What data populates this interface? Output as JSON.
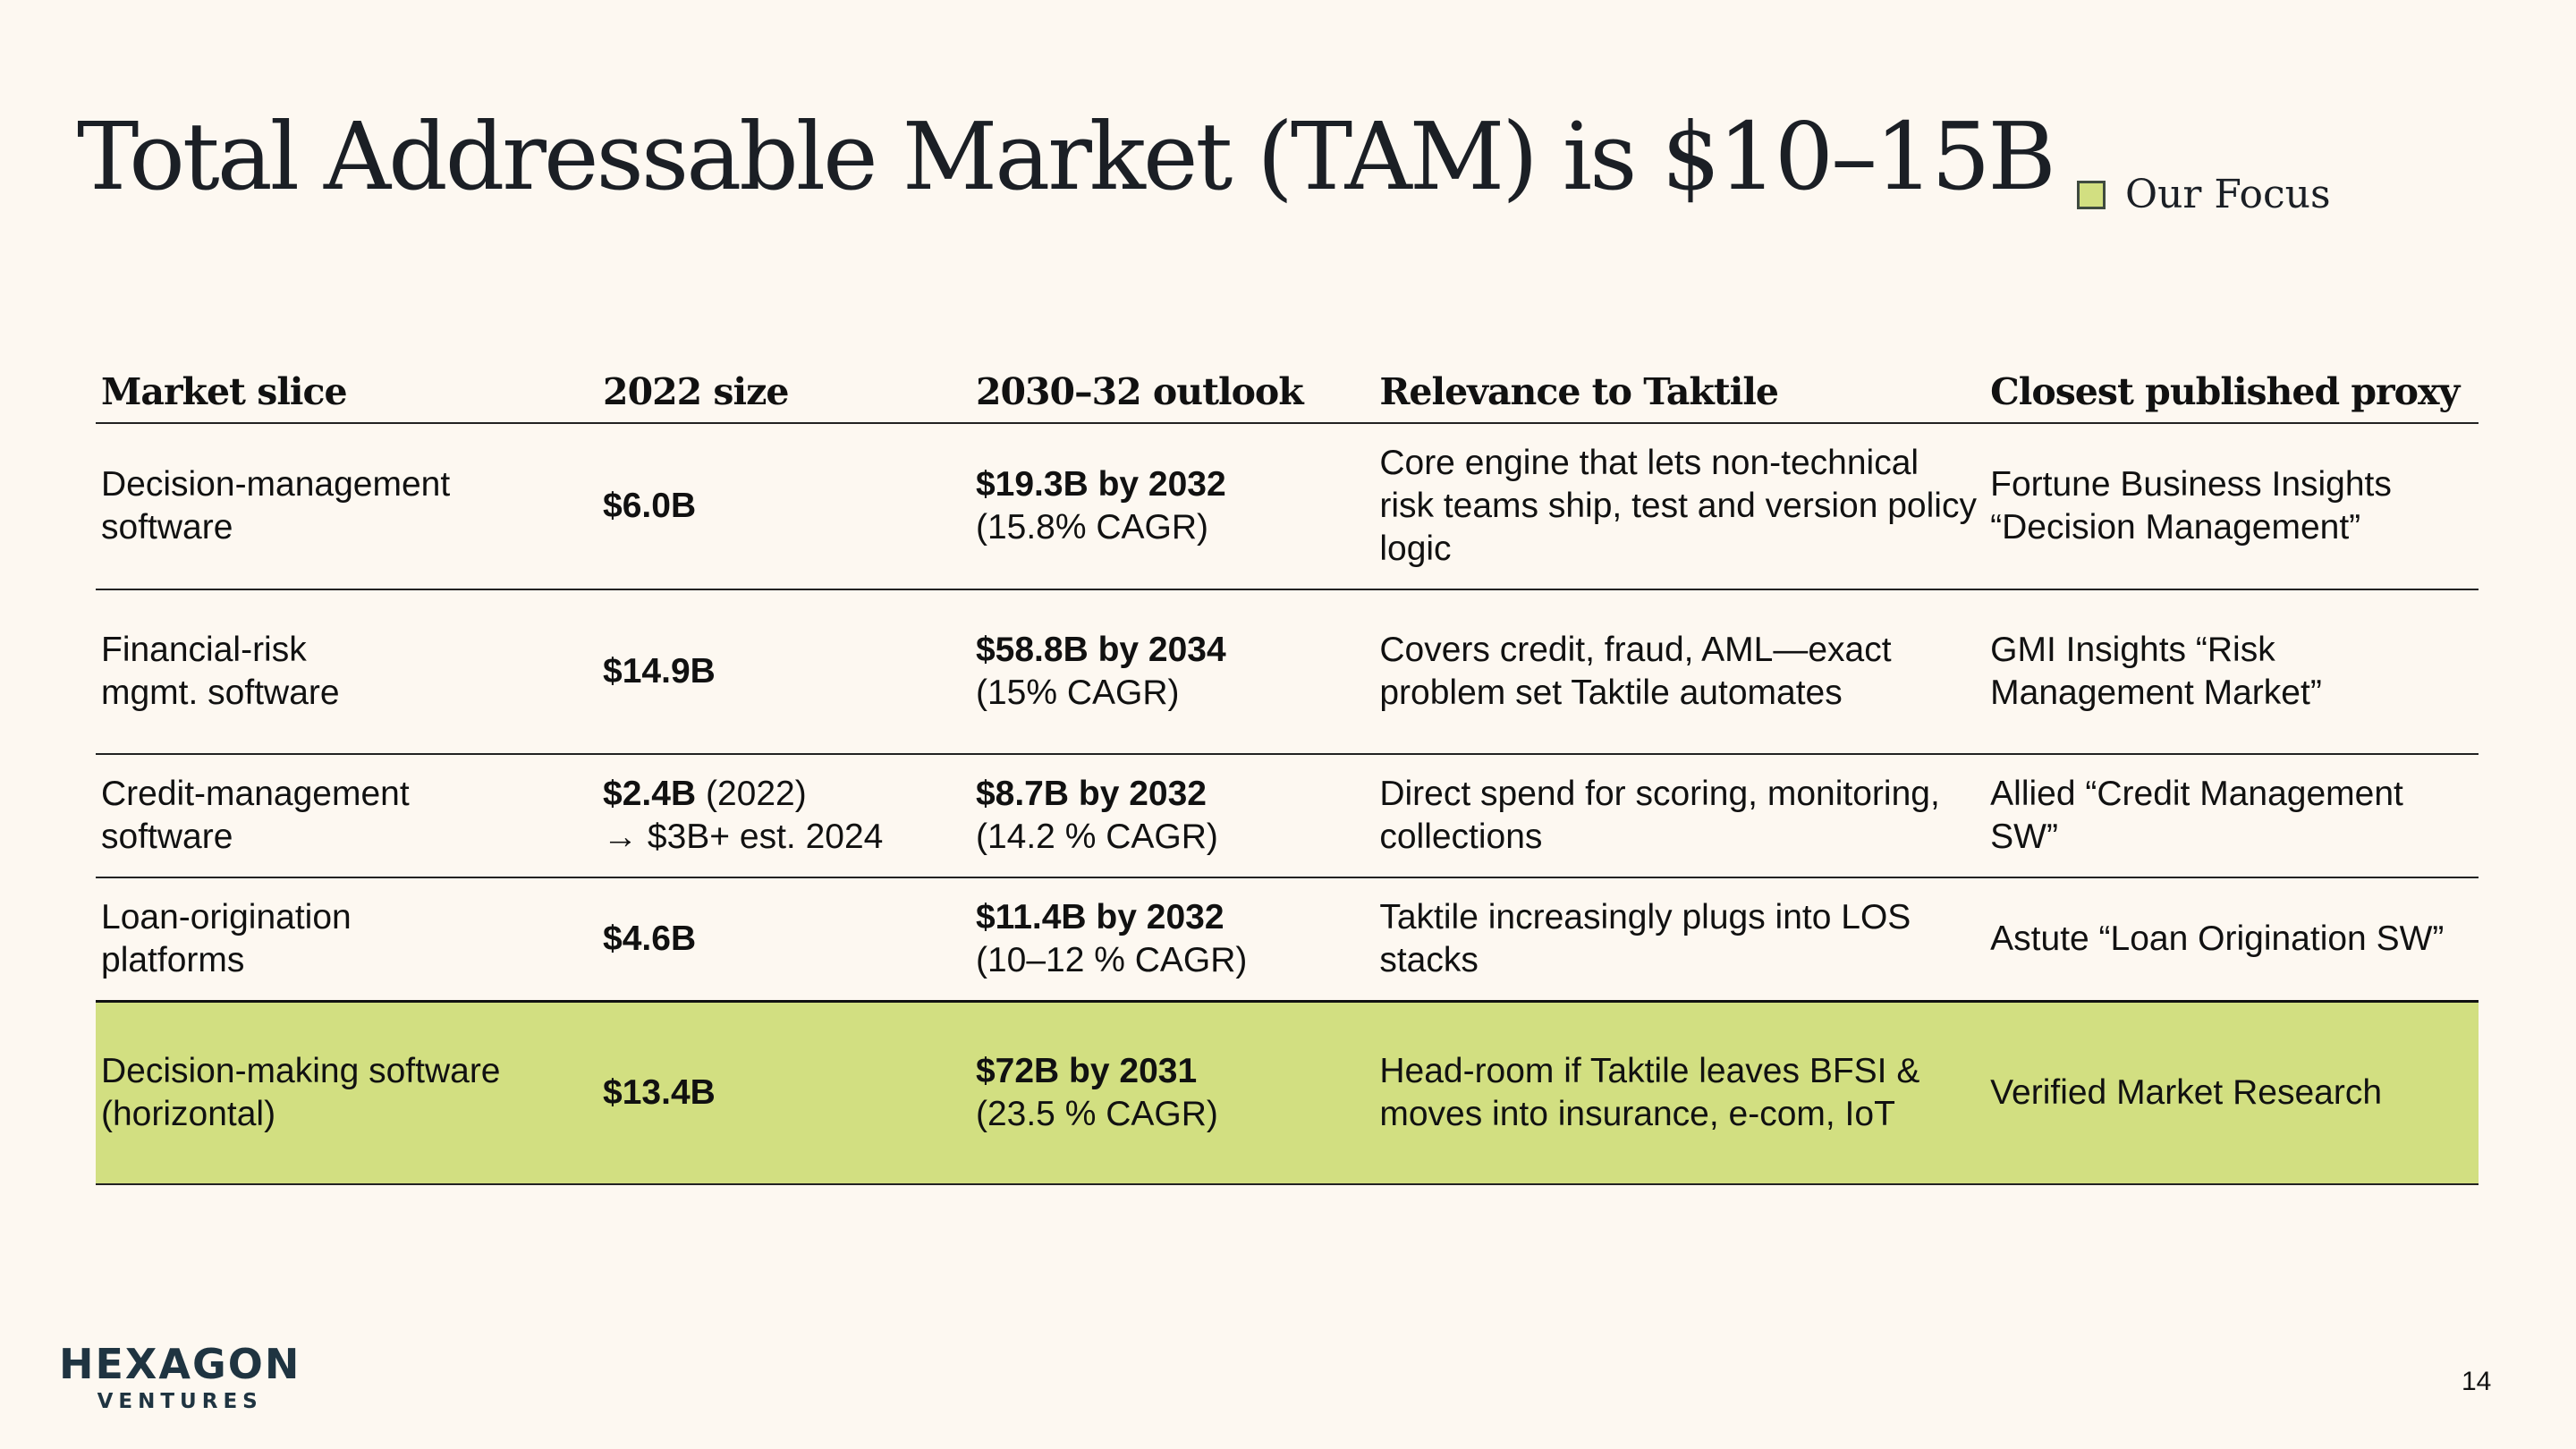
{
  "title": "Total Addressable Market (TAM) is $10–15B",
  "legend": {
    "label": "Our Focus",
    "color": "#d2df81"
  },
  "table": {
    "headers": [
      "Market slice",
      "2022 size",
      "2030–32 outlook",
      "Relevance to Taktile",
      "Closest published proxy"
    ],
    "rows": [
      {
        "slice_line1": "Decision-management",
        "slice_line2": "software",
        "size_bold": "$6.0B",
        "size_rest": "",
        "size_line2": "",
        "outlook_bold": "$19.3B by 2032",
        "outlook_cagr": "(15.8% CAGR)",
        "relevance": "Core engine that lets non-technical risk teams ship, test and version policy logic",
        "proxy": "Fortune Business Insights “Decision Management”",
        "focus": false
      },
      {
        "slice_line1": "Financial-risk",
        "slice_line2": "mgmt. software",
        "size_bold": "$14.9B",
        "size_rest": "",
        "size_line2": "",
        "outlook_bold": "$58.8B by 2034",
        "outlook_cagr": "(15% CAGR)",
        "relevance": "Covers credit, fraud, AML—exact problem set Taktile automates",
        "proxy": "GMI Insights “Risk Management Market”",
        "focus": false
      },
      {
        "slice_line1": "Credit-management",
        "slice_line2": "software",
        "size_bold": "$2.4B",
        "size_rest": " (2022)",
        "size_line2": "→ $3B+ est. 2024",
        "outlook_bold": "$8.7B by 2032",
        "outlook_cagr": "(14.2 % CAGR)",
        "relevance": "Direct spend for scoring, monitoring, collections",
        "proxy": "Allied “Credit Management SW”",
        "focus": false
      },
      {
        "slice_line1": "Loan-origination",
        "slice_line2": "platforms",
        "size_bold": "$4.6B",
        "size_rest": "",
        "size_line2": "",
        "outlook_bold": "$11.4B by 2032",
        "outlook_cagr": "(10–12 % CAGR)",
        "relevance": "Taktile increasingly plugs into LOS stacks",
        "proxy": "Astute “Loan Origination SW”",
        "focus": false
      },
      {
        "slice_line1": "Decision-making software",
        "slice_line2": "(horizontal)",
        "size_bold": "$13.4B",
        "size_rest": "",
        "size_line2": "",
        "outlook_bold": "$72B by 2031",
        "outlook_cagr": "(23.5 % CAGR)",
        "relevance": "Head-room if Taktile leaves BFSI & moves into insurance, e-com, IoT",
        "proxy": "Verified Market Research",
        "focus": true
      }
    ]
  },
  "logo": {
    "main": "HEXAGON",
    "sub": "VENTURES"
  },
  "page_number": "14"
}
